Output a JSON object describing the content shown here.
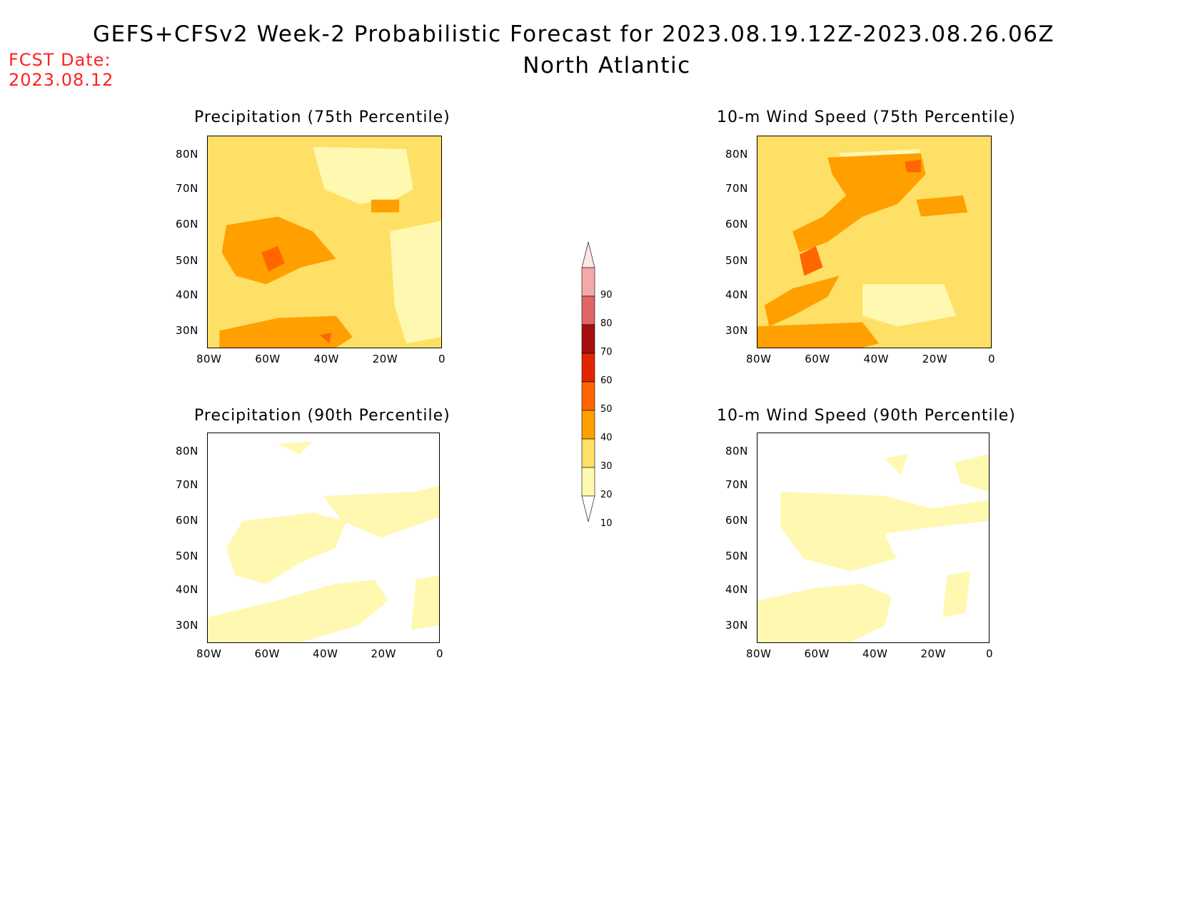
{
  "header": {
    "title": "GEFS+CFSv2 Week-2 Probabilistic Forecast for 2023.08.19.12Z-2023.08.26.06Z",
    "subtitle": "North Atlantic",
    "fcst_label": "FCST Date:",
    "fcst_date": "2023.08.12"
  },
  "panels": [
    {
      "id": "precip-75",
      "title": "Precipitation (75th Percentile)"
    },
    {
      "id": "wind-75",
      "title": "10-m Wind Speed (75th Percentile)"
    },
    {
      "id": "precip-90",
      "title": "Precipitation (90th Percentile)"
    },
    {
      "id": "wind-90",
      "title": "10-m Wind Speed (90th Percentile)"
    }
  ],
  "axes": {
    "lat_labels": [
      "80N",
      "70N",
      "60N",
      "50N",
      "40N",
      "30N"
    ],
    "lon_labels": [
      "80W",
      "60W",
      "40W",
      "20W",
      "0"
    ]
  },
  "colorbar": {
    "labels": [
      "90",
      "80",
      "70",
      "60",
      "50",
      "40",
      "30",
      "20",
      "10"
    ],
    "colors": [
      "#fde6e6",
      "#f4a8a8",
      "#e06666",
      "#a50f0f",
      "#e22500",
      "#ff6600",
      "#ff9f00",
      "#ffe066",
      "#fff8b0"
    ],
    "levels_units": "percent probability"
  },
  "colors": {
    "fcst_text": "#ff2020",
    "c10": "#fff8b0",
    "c20": "#ffe066",
    "c30": "#ff9f00",
    "c40": "#ff6600"
  }
}
